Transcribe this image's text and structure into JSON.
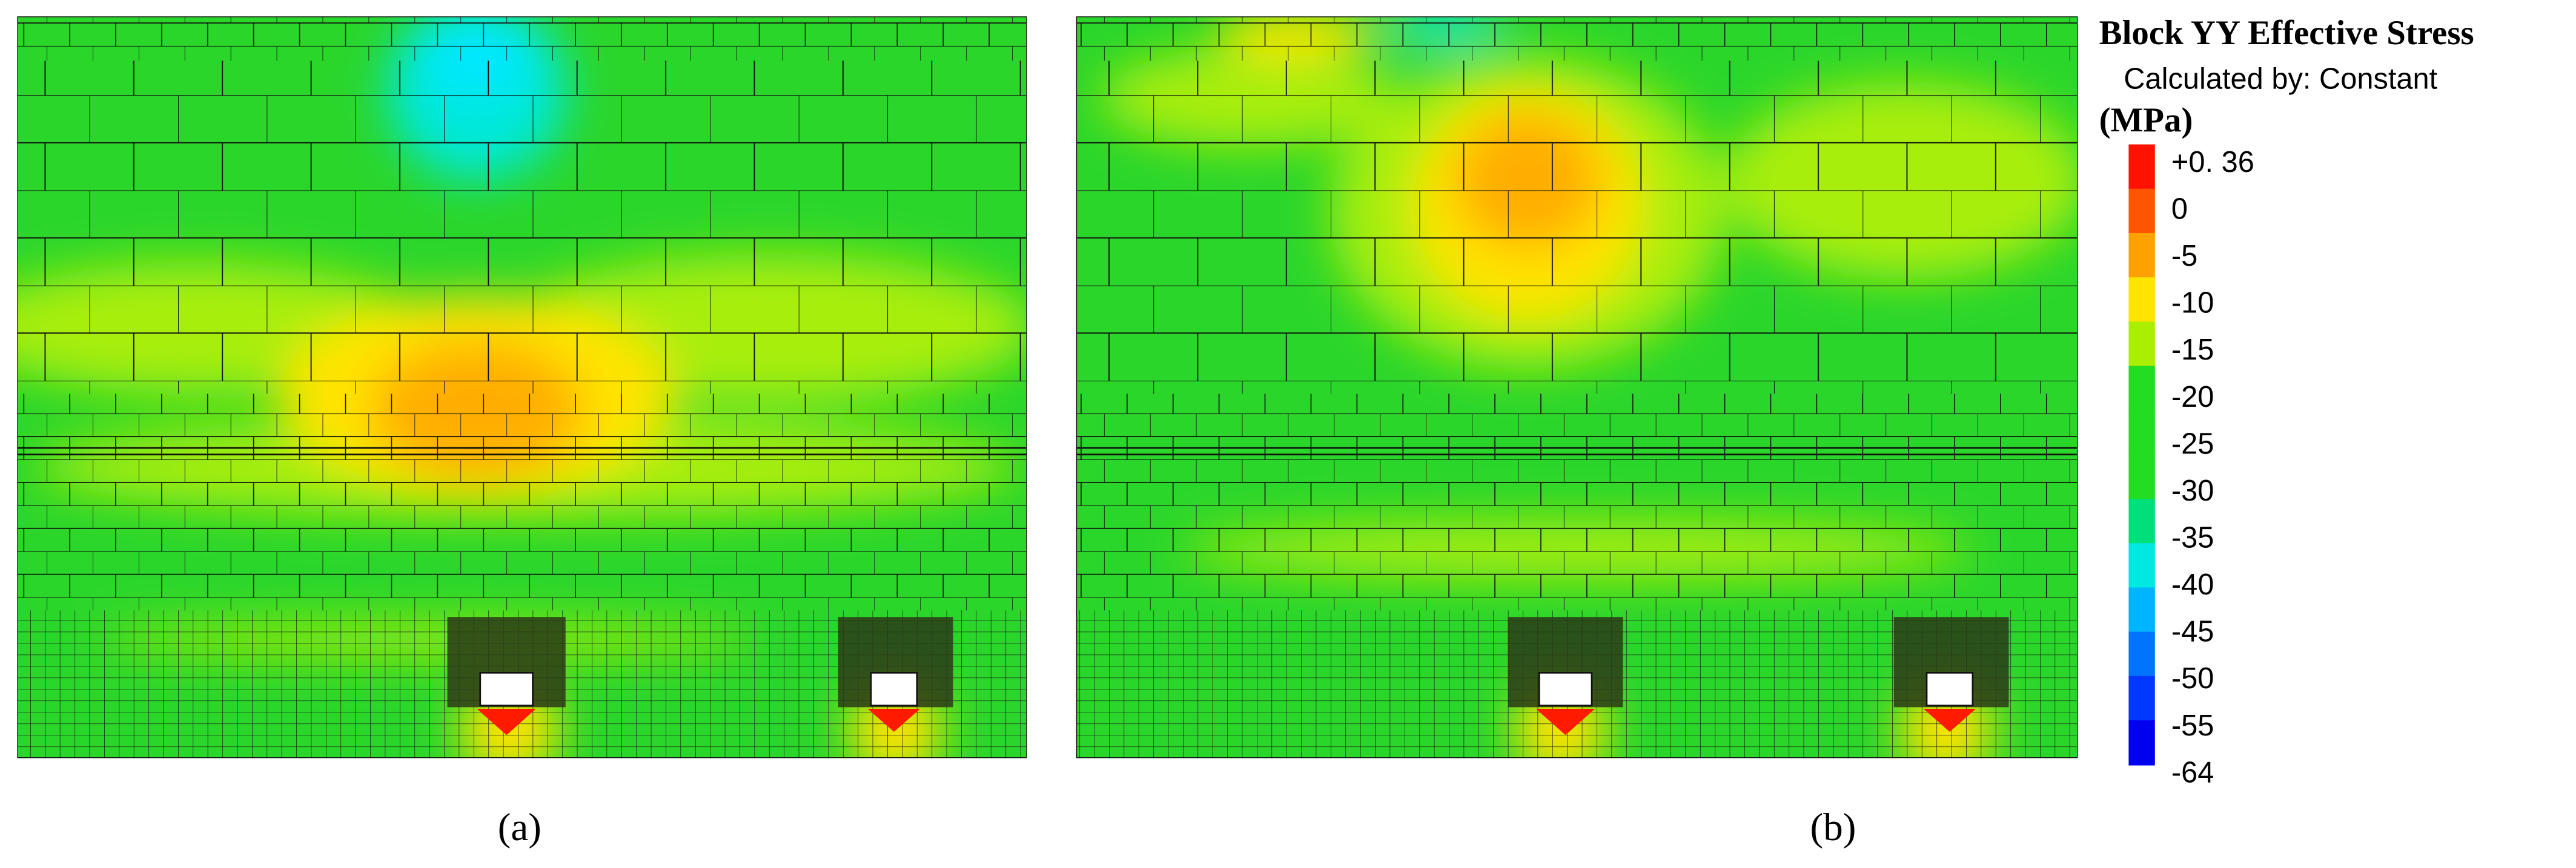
{
  "panels": [
    {
      "label": "(a)"
    },
    {
      "label": "(b)"
    }
  ],
  "legend": {
    "title": "Block YY Effective Stress",
    "subtitle": "Calculated by: Constant",
    "unit": "(MPa)",
    "levels": [
      {
        "label": "+0. 36",
        "color": "#ff1200"
      },
      {
        "label": "0",
        "color": "#ff5500"
      },
      {
        "label": "-5",
        "color": "#ffa200"
      },
      {
        "label": "-10",
        "color": "#ffe400"
      },
      {
        "label": "-15",
        "color": "#aaee00"
      },
      {
        "label": "-20",
        "color": "#22dd22"
      },
      {
        "label": "-25",
        "color": "#22dd22"
      },
      {
        "label": "-30",
        "color": "#22dd22"
      },
      {
        "label": "-35",
        "color": "#00e07a"
      },
      {
        "label": "-40",
        "color": "#00e8e0"
      },
      {
        "label": "-45",
        "color": "#00b4ff"
      },
      {
        "label": "-50",
        "color": "#0074ff"
      },
      {
        "label": "-55",
        "color": "#0038ff"
      },
      {
        "label": "-64",
        "color": "#0000ee"
      }
    ]
  }
}
